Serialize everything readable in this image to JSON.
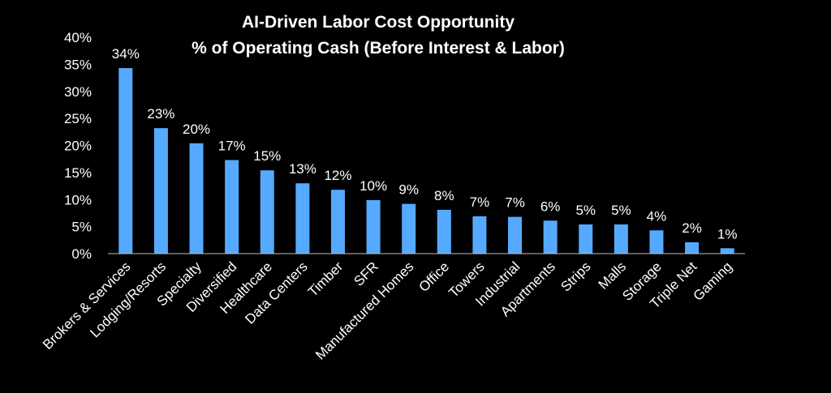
{
  "chart_data": {
    "type": "bar",
    "title": "AI-Driven Labor Cost Opportunity",
    "subtitle": "% of Operating Cash (Before Interest & Labor)",
    "xlabel": "",
    "ylabel": "",
    "ylim": [
      0,
      40
    ],
    "yticks": [
      "0%",
      "5%",
      "10%",
      "15%",
      "20%",
      "25%",
      "30%",
      "35%",
      "40%"
    ],
    "grid": false,
    "bar_color": "#55aaff",
    "categories": [
      "Brokers & Services",
      "Lodging/Resorts",
      "Specialty",
      "Diversified",
      "Healthcare",
      "Data Centers",
      "Timber",
      "SFR",
      "Manufactured Homes",
      "Office",
      "Towers",
      "Industrial",
      "Apartments",
      "Strips",
      "Malls",
      "Storage",
      "Triple Net",
      "Gaming"
    ],
    "values": [
      34.3,
      23.2,
      20.4,
      17.3,
      15.4,
      13.0,
      11.8,
      9.9,
      9.2,
      8.1,
      6.9,
      6.8,
      6.1,
      5.4,
      5.4,
      4.3,
      2.1,
      1.0
    ],
    "data_labels": [
      "34%",
      "23%",
      "20%",
      "17%",
      "15%",
      "13%",
      "12%",
      "10%",
      "9%",
      "8%",
      "7%",
      "7%",
      "6%",
      "5%",
      "5%",
      "4%",
      "2%",
      "1%"
    ]
  }
}
